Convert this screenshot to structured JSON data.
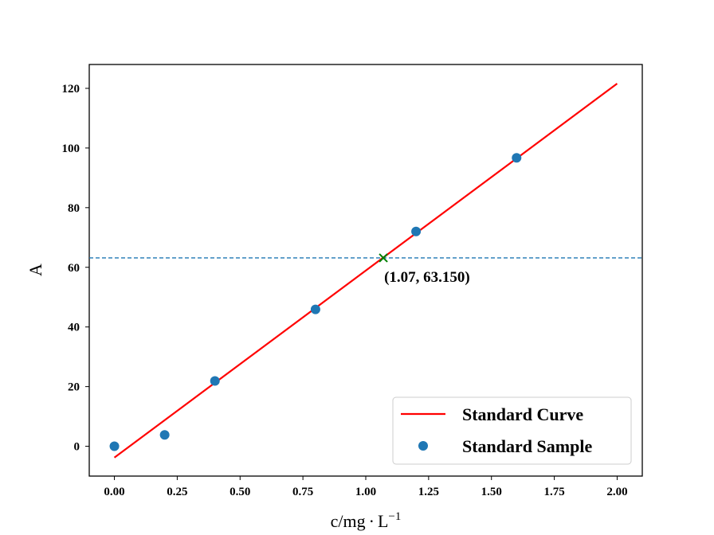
{
  "chart_data": {
    "type": "scatter",
    "title": "",
    "xlabel_main": "c/mg",
    "xlabel_dot": "·",
    "xlabel_unit": "L",
    "xlabel_exp": "−1",
    "ylabel": "A",
    "xlim": [
      -0.1,
      2.1
    ],
    "ylim": [
      -10,
      128
    ],
    "xticks": [
      0.0,
      0.25,
      0.5,
      0.75,
      1.0,
      1.25,
      1.5,
      1.75,
      2.0
    ],
    "xtick_labels": [
      "0.00",
      "0.25",
      "0.50",
      "0.75",
      "1.00",
      "1.25",
      "1.50",
      "1.75",
      "2.00"
    ],
    "yticks": [
      0,
      20,
      40,
      60,
      80,
      100,
      120
    ],
    "ytick_labels": [
      "0",
      "20",
      "40",
      "60",
      "80",
      "100",
      "120"
    ],
    "grid": false,
    "series": [
      {
        "name": "Standard Curve",
        "kind": "line",
        "color": "#ff0000",
        "x": [
          0.0,
          2.0
        ],
        "y": [
          -3.8,
          121.6
        ]
      },
      {
        "name": "Standard Sample",
        "kind": "scatter",
        "color": "#1f77b4",
        "x": [
          0.0,
          0.2,
          0.4,
          0.8,
          1.2,
          1.6
        ],
        "y": [
          0.0,
          3.8,
          21.9,
          45.9,
          72.0,
          96.7
        ]
      }
    ],
    "hline": {
      "y": 63.15,
      "color": "#1f77b4",
      "style": "dashed"
    },
    "marker": {
      "x": 1.07,
      "y": 63.15,
      "symbol": "x",
      "color": "#008000"
    },
    "annotation": {
      "text": "(1.07, 63.150)",
      "x": 1.07,
      "y": 63.15
    },
    "legend": {
      "position": "lower-right",
      "entries": [
        "Standard Curve",
        "Standard Sample"
      ]
    }
  }
}
